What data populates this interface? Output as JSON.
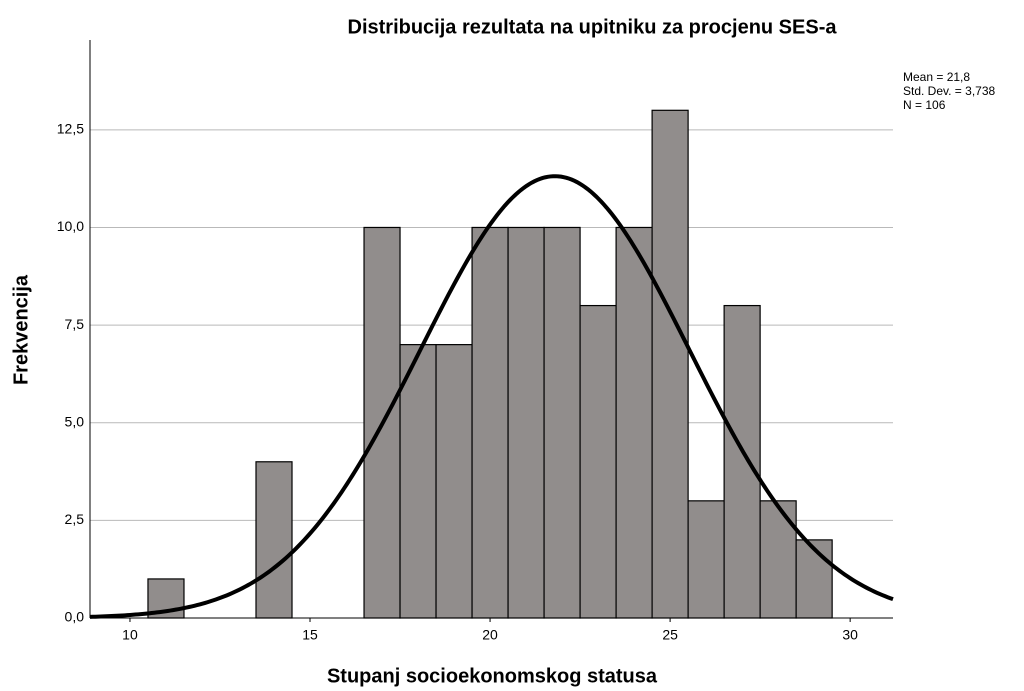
{
  "chart_data": {
    "type": "histogram",
    "title": "Distribucija rezultata na upitniku za procjenu SES-a",
    "x_label": "Stupanj socioekonomskog statusa",
    "y_label": "Frekvencija",
    "bins": [
      10.5,
      11.5,
      12.5,
      13.5,
      14.5,
      15.5,
      16.5,
      17.5,
      18.5,
      19.5,
      20.5,
      21.5,
      22.5,
      23.5,
      24.5,
      25.5,
      26.5,
      27.5,
      28.5,
      29.5
    ],
    "values": [
      1,
      0,
      0,
      4,
      0,
      0,
      10,
      7,
      7,
      10,
      10,
      10,
      8,
      10,
      13,
      3,
      8,
      3,
      2
    ],
    "color": "#918d8c",
    "curve_color": "#000000",
    "normal_curve": true,
    "stats": [
      {
        "value": 21.8,
        "label": "Mean = 21,8"
      },
      {
        "value": 3.738,
        "label": "Std. Dev. = 3,738"
      },
      {
        "value": 106,
        "label": "N = 106"
      }
    ],
    "xlim": [
      8.89,
      31.19
    ],
    "ylim": [
      0,
      14.8
    ],
    "xticks": [
      10,
      15,
      20,
      25,
      30
    ],
    "yticks": [
      {
        "value": 0,
        "label": "0,0"
      },
      {
        "value": 2.5,
        "label": "2,5"
      },
      {
        "value": 5,
        "label": "5,0"
      },
      {
        "value": 7.5,
        "label": "7,5"
      },
      {
        "value": 10,
        "label": "10,0"
      },
      {
        "value": 12.5,
        "label": "12,5"
      }
    ],
    "grid": true
  }
}
